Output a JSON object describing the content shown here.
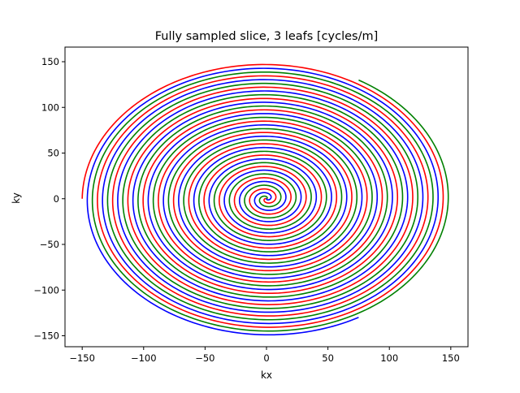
{
  "chart_data": {
    "type": "line",
    "title": "Fully sampled slice, 3 leafs [cycles/m]",
    "xlabel": "kx",
    "ylabel": "ky",
    "xlim": [
      -164,
      164
    ],
    "ylim": [
      -162,
      166
    ],
    "xticks": [
      -150,
      -100,
      -50,
      0,
      50,
      100,
      150
    ],
    "yticks": [
      -150,
      -100,
      -50,
      0,
      50,
      100,
      150
    ],
    "grid": false,
    "legend": "none",
    "spiral": {
      "turns": 12.1,
      "max_radius": 150,
      "end_phases_deg": [
        180,
        60,
        300
      ]
    },
    "series": [
      {
        "color": "#ff0000"
      },
      {
        "color": "#008000"
      },
      {
        "color": "#0000ff"
      }
    ]
  }
}
